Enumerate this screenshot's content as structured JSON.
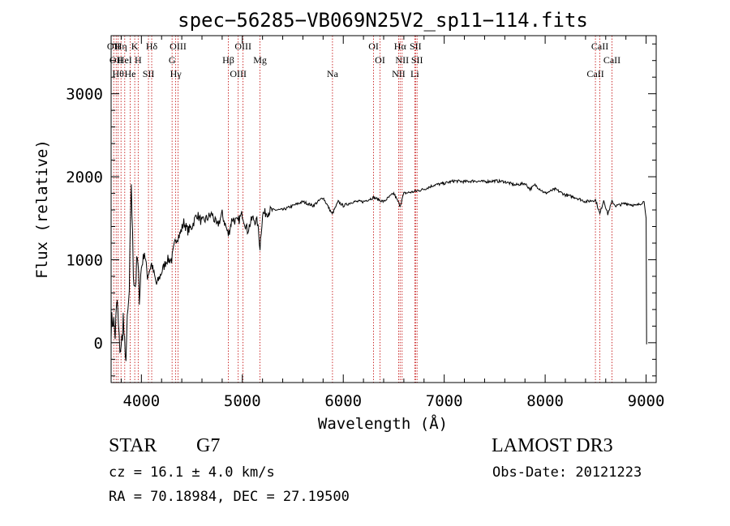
{
  "chart_data": {
    "type": "line",
    "title": "spec−56285−VB069N25V2_sp11−114.fits",
    "xlabel": "Wavelength (Å)",
    "ylabel": "Flux (relative)",
    "xlim": [
      3700,
      9100
    ],
    "ylim": [
      -480,
      3700
    ],
    "x_ticks": [
      4000,
      5000,
      6000,
      7000,
      8000,
      9000
    ],
    "y_ticks": [
      0,
      1000,
      2000,
      3000
    ],
    "series": [
      {
        "name": "flux",
        "x": [
          3700,
          3720,
          3740,
          3760,
          3780,
          3800,
          3820,
          3840,
          3860,
          3880,
          3900,
          3920,
          3940,
          3960,
          3980,
          4000,
          4030,
          4060,
          4100,
          4150,
          4200,
          4250,
          4300,
          4340,
          4380,
          4420,
          4460,
          4500,
          4550,
          4600,
          4650,
          4700,
          4750,
          4800,
          4861,
          4900,
          4950,
          5000,
          5050,
          5100,
          5150,
          5175,
          5200,
          5300,
          5400,
          5500,
          5600,
          5700,
          5800,
          5890,
          5950,
          6000,
          6100,
          6200,
          6300,
          6400,
          6500,
          6563,
          6600,
          6700,
          6800,
          6900,
          7000,
          7100,
          7200,
          7300,
          7400,
          7500,
          7600,
          7700,
          7800,
          7850,
          7900,
          8000,
          8100,
          8200,
          8300,
          8400,
          8500,
          8542,
          8580,
          8620,
          8662,
          8700,
          8800,
          8900,
          8980,
          9000,
          9005
        ],
        "y": [
          200,
          300,
          100,
          500,
          0,
          -100,
          300,
          -250,
          200,
          600,
          1950,
          850,
          700,
          1000,
          600,
          900,
          1100,
          800,
          950,
          700,
          850,
          1000,
          1000,
          1250,
          1300,
          1450,
          1350,
          1400,
          1550,
          1450,
          1500,
          1550,
          1400,
          1550,
          1300,
          1500,
          1450,
          1550,
          1350,
          1500,
          1450,
          1150,
          1550,
          1600,
          1600,
          1650,
          1700,
          1650,
          1750,
          1550,
          1700,
          1650,
          1700,
          1700,
          1750,
          1700,
          1800,
          1650,
          1800,
          1820,
          1850,
          1900,
          1920,
          1950,
          1940,
          1950,
          1940,
          1950,
          1940,
          1900,
          1920,
          1850,
          1900,
          1800,
          1850,
          1780,
          1750,
          1700,
          1720,
          1550,
          1720,
          1550,
          1700,
          1650,
          1680,
          1650,
          1700,
          1500,
          -20
        ]
      }
    ],
    "lines": [
      {
        "x": 3726,
        "label": "OII"
      },
      {
        "x": 3750,
        "label": "OII"
      },
      {
        "x": 3770,
        "label": "Hθ"
      },
      {
        "x": 3798,
        "label": "Hη"
      },
      {
        "x": 3835,
        "label": "HeI"
      },
      {
        "x": 3889,
        "label": "He"
      },
      {
        "x": 3934,
        "label": "K"
      },
      {
        "x": 3968,
        "label": "H"
      },
      {
        "x": 4070,
        "label": "SII"
      },
      {
        "x": 4102,
        "label": "Hδ"
      },
      {
        "x": 4304,
        "label": "G"
      },
      {
        "x": 4340,
        "label": "Hγ"
      },
      {
        "x": 4363,
        "label": "OIII"
      },
      {
        "x": 4861,
        "label": "Hβ"
      },
      {
        "x": 4959,
        "label": "OIII"
      },
      {
        "x": 5007,
        "label": "OIII"
      },
      {
        "x": 5175,
        "label": "Mg"
      },
      {
        "x": 5893,
        "label": "Na"
      },
      {
        "x": 6300,
        "label": "OI"
      },
      {
        "x": 6364,
        "label": "OI"
      },
      {
        "x": 6548,
        "label": "NII"
      },
      {
        "x": 6563,
        "label": "Hα"
      },
      {
        "x": 6583,
        "label": "NII"
      },
      {
        "x": 6708,
        "label": "Li"
      },
      {
        "x": 6716,
        "label": "SII"
      },
      {
        "x": 6731,
        "label": "SII"
      },
      {
        "x": 8498,
        "label": "CaII"
      },
      {
        "x": 8542,
        "label": "CaII"
      },
      {
        "x": 8662,
        "label": "CaII"
      }
    ]
  },
  "info": {
    "object_class": "STAR",
    "subclass": "G7",
    "survey": "LAMOST DR3",
    "redshift": "cz = 16.1 ± 4.0 km/s",
    "obs_date": "Obs-Date: 20121223",
    "coords": "RA =  70.18984, DEC =  27.19500"
  }
}
